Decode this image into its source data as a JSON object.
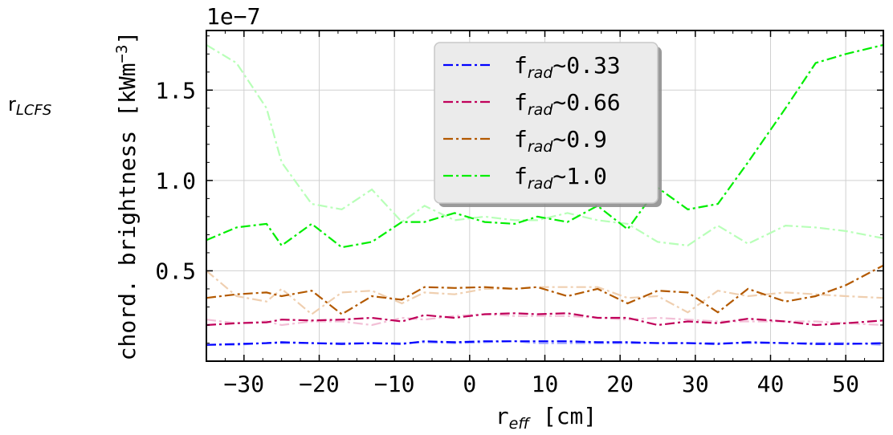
{
  "chart_data": {
    "type": "line",
    "offset_text": "1e−7",
    "side_label": {
      "main": "r",
      "sub": "LCFS"
    },
    "xlabel": {
      "main": "r",
      "sub": "eff",
      "unit": " [cm]"
    },
    "ylabel": {
      "main": "chord. brightness [kWm",
      "sup": "−3",
      "end": "]"
    },
    "xlim": [
      -35,
      55
    ],
    "ylim": [
      0.0,
      1.83
    ],
    "x_ticks": [
      -30,
      -20,
      -10,
      0,
      10,
      20,
      30,
      40,
      50
    ],
    "x_tick_labels": [
      "−30",
      "−20",
      "−10",
      "0",
      "10",
      "20",
      "30",
      "40",
      "50"
    ],
    "y_ticks": [
      0.5,
      1.0,
      1.5
    ],
    "y_tick_labels": [
      "0.5",
      "1.0",
      "1.5"
    ],
    "grid": true,
    "legend_position": "top-center",
    "x": [
      -35,
      -31,
      -27,
      -25,
      -21,
      -17,
      -13,
      -9,
      -6,
      -2,
      2,
      6,
      9,
      13,
      17,
      21,
      25,
      29,
      33,
      37,
      42,
      46,
      50,
      55
    ],
    "series": [
      {
        "name": "f",
        "sub": "rad",
        "suffix": "∼0.33",
        "color": "#0000ff",
        "values": [
          0.09,
          0.095,
          0.1,
          0.105,
          0.1,
          0.095,
          0.1,
          0.095,
          0.11,
          0.105,
          0.11,
          0.11,
          0.11,
          0.11,
          0.105,
          0.105,
          0.1,
          0.1,
          0.095,
          0.105,
          0.1,
          0.095,
          0.095,
          0.1
        ]
      },
      {
        "name": "f",
        "sub": "rad",
        "suffix": "∼0.66",
        "color": "#c0005a",
        "values": [
          0.2,
          0.21,
          0.215,
          0.23,
          0.225,
          0.23,
          0.24,
          0.22,
          0.255,
          0.24,
          0.26,
          0.265,
          0.26,
          0.265,
          0.24,
          0.24,
          0.2,
          0.22,
          0.21,
          0.235,
          0.22,
          0.2,
          0.21,
          0.225
        ]
      },
      {
        "name": "f",
        "sub": "rad",
        "suffix": "∼0.9",
        "color": "#b35900",
        "values": [
          0.35,
          0.37,
          0.38,
          0.36,
          0.39,
          0.26,
          0.36,
          0.34,
          0.41,
          0.405,
          0.41,
          0.4,
          0.41,
          0.36,
          0.4,
          0.32,
          0.39,
          0.38,
          0.27,
          0.4,
          0.33,
          0.36,
          0.42,
          0.53
        ]
      },
      {
        "name": "f",
        "sub": "rad",
        "suffix": "∼1.0",
        "color": "#00ee00",
        "values": [
          0.67,
          0.74,
          0.76,
          0.64,
          0.76,
          0.63,
          0.66,
          0.77,
          0.77,
          0.82,
          0.77,
          0.76,
          0.8,
          0.77,
          0.86,
          0.73,
          0.96,
          0.84,
          0.87,
          1.1,
          1.4,
          1.65,
          1.7,
          1.75
        ]
      }
    ],
    "faded_series": [
      {
        "color": "#9aa0ff",
        "values": [
          0.09,
          0.09,
          0.1,
          0.1,
          0.1,
          0.1,
          0.1,
          0.1,
          0.105,
          0.1,
          0.105,
          0.11,
          0.1,
          0.1,
          0.1,
          0.1,
          0.1,
          0.1,
          0.1,
          0.1,
          0.1,
          0.1,
          0.1,
          0.09
        ]
      },
      {
        "color": "#f2bfd6",
        "values": [
          0.23,
          0.21,
          0.22,
          0.2,
          0.22,
          0.22,
          0.2,
          0.24,
          0.23,
          0.25,
          0.26,
          0.25,
          0.25,
          0.25,
          0.24,
          0.23,
          0.24,
          0.23,
          0.22,
          0.22,
          0.22,
          0.22,
          0.21,
          0.2
        ]
      },
      {
        "color": "#efcfb0",
        "values": [
          0.5,
          0.36,
          0.33,
          0.4,
          0.26,
          0.38,
          0.39,
          0.32,
          0.38,
          0.37,
          0.4,
          0.4,
          0.41,
          0.41,
          0.41,
          0.35,
          0.36,
          0.27,
          0.39,
          0.36,
          0.38,
          0.37,
          0.36,
          0.35
        ]
      },
      {
        "color": "#b8ffb8",
        "values": [
          1.75,
          1.65,
          1.4,
          1.1,
          0.87,
          0.84,
          0.95,
          0.77,
          0.86,
          0.78,
          0.8,
          0.78,
          0.78,
          0.82,
          0.78,
          0.76,
          0.66,
          0.64,
          0.75,
          0.65,
          0.75,
          0.74,
          0.72,
          0.68
        ]
      }
    ]
  }
}
